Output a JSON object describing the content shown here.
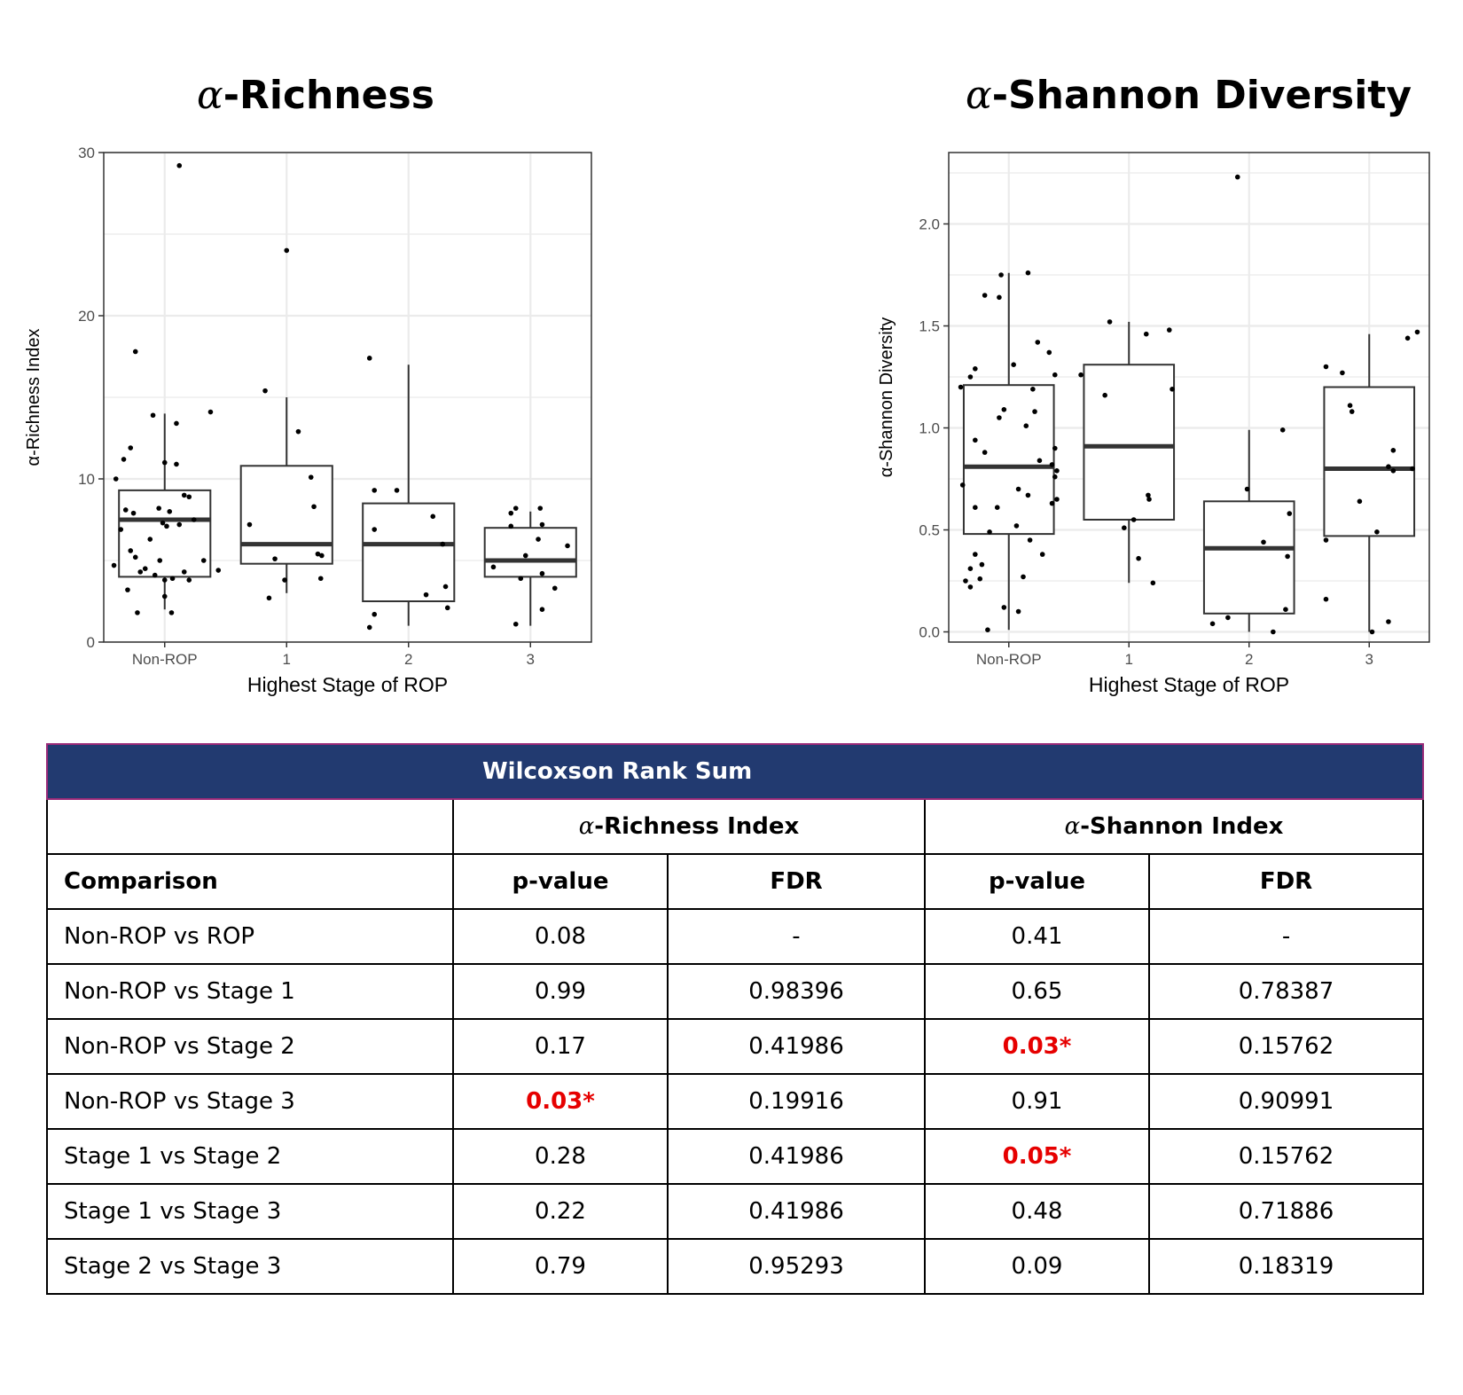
{
  "panels": [
    {
      "title_prefix": "α",
      "title_suffix": "-Richness",
      "chart_data": {
        "type": "box",
        "xlabel": "Highest Stage of ROP",
        "ylabel": "α-Richness Index",
        "categories": [
          "Non-ROP",
          "1",
          "2",
          "3"
        ],
        "ylim": [
          0,
          30
        ],
        "yticks": [
          0,
          10,
          20,
          30
        ],
        "grid": true,
        "boxes": [
          {
            "q1": 4,
            "median": 7.5,
            "q3": 9.3,
            "whisker_low": 2,
            "whisker_high": 14
          },
          {
            "q1": 4.8,
            "median": 6,
            "q3": 10.8,
            "whisker_low": 3,
            "whisker_high": 15
          },
          {
            "q1": 2.5,
            "median": 6,
            "q3": 8.5,
            "whisker_low": 1,
            "whisker_high": 17
          },
          {
            "q1": 4,
            "median": 5,
            "q3": 7,
            "whisker_low": 1,
            "whisker_high": 8
          }
        ],
        "points": [
          [
            {
              "j": 0.15,
              "y": 29.2
            },
            {
              "j": -0.3,
              "y": 17.8
            },
            {
              "j": 0.47,
              "y": 14.1
            },
            {
              "j": -0.12,
              "y": 13.9
            },
            {
              "j": 0.12,
              "y": 13.4
            },
            {
              "j": -0.35,
              "y": 11.9
            },
            {
              "j": -0.42,
              "y": 11.2
            },
            {
              "j": 0.0,
              "y": 11.0
            },
            {
              "j": 0.12,
              "y": 10.9
            },
            {
              "j": -0.5,
              "y": 10.0
            },
            {
              "j": 0.2,
              "y": 9.0
            },
            {
              "j": 0.25,
              "y": 8.9
            },
            {
              "j": -0.4,
              "y": 8.1
            },
            {
              "j": -0.06,
              "y": 8.2
            },
            {
              "j": 0.05,
              "y": 8.0
            },
            {
              "j": -0.32,
              "y": 7.9
            },
            {
              "j": 0.3,
              "y": 7.5
            },
            {
              "j": -0.02,
              "y": 7.3
            },
            {
              "j": 0.15,
              "y": 7.2
            },
            {
              "j": -0.45,
              "y": 6.9
            },
            {
              "j": 0.02,
              "y": 7.1
            },
            {
              "j": -0.15,
              "y": 6.3
            },
            {
              "j": -0.35,
              "y": 5.6
            },
            {
              "j": -0.3,
              "y": 5.2
            },
            {
              "j": 0.4,
              "y": 5.0
            },
            {
              "j": -0.05,
              "y": 5.0
            },
            {
              "j": -0.52,
              "y": 4.7
            },
            {
              "j": -0.2,
              "y": 4.5
            },
            {
              "j": -0.25,
              "y": 4.3
            },
            {
              "j": 0.2,
              "y": 4.3
            },
            {
              "j": -0.1,
              "y": 4.1
            },
            {
              "j": 0.0,
              "y": 3.8
            },
            {
              "j": 0.08,
              "y": 3.9
            },
            {
              "j": 0.25,
              "y": 3.8
            },
            {
              "j": -0.38,
              "y": 3.2
            },
            {
              "j": 0.0,
              "y": 2.8
            },
            {
              "j": -0.28,
              "y": 1.8
            },
            {
              "j": 0.07,
              "y": 1.8
            },
            {
              "j": 0.55,
              "y": 4.4
            }
          ],
          [
            {
              "j": 0.0,
              "y": 24.0
            },
            {
              "j": -0.22,
              "y": 15.4
            },
            {
              "j": 0.12,
              "y": 12.9
            },
            {
              "j": 0.25,
              "y": 10.1
            },
            {
              "j": 0.28,
              "y": 8.3
            },
            {
              "j": -0.38,
              "y": 7.2
            },
            {
              "j": -0.12,
              "y": 5.1
            },
            {
              "j": 0.32,
              "y": 5.4
            },
            {
              "j": 0.36,
              "y": 5.3
            },
            {
              "j": -0.02,
              "y": 3.8
            },
            {
              "j": 0.35,
              "y": 3.9
            },
            {
              "j": -0.18,
              "y": 2.7
            }
          ],
          [
            {
              "j": -0.4,
              "y": 17.4
            },
            {
              "j": -0.35,
              "y": 9.3
            },
            {
              "j": -0.12,
              "y": 9.3
            },
            {
              "j": 0.25,
              "y": 7.7
            },
            {
              "j": -0.35,
              "y": 6.9
            },
            {
              "j": 0.35,
              "y": 6.0
            },
            {
              "j": 0.38,
              "y": 3.4
            },
            {
              "j": 0.18,
              "y": 2.9
            },
            {
              "j": 0.4,
              "y": 2.1
            },
            {
              "j": -0.35,
              "y": 1.7
            },
            {
              "j": -0.4,
              "y": 0.9
            }
          ],
          [
            {
              "j": -0.15,
              "y": 8.2
            },
            {
              "j": 0.1,
              "y": 8.2
            },
            {
              "j": -0.2,
              "y": 7.9
            },
            {
              "j": -0.2,
              "y": 7.1
            },
            {
              "j": 0.12,
              "y": 7.2
            },
            {
              "j": 0.08,
              "y": 6.3
            },
            {
              "j": 0.38,
              "y": 5.9
            },
            {
              "j": -0.05,
              "y": 5.3
            },
            {
              "j": -0.38,
              "y": 4.6
            },
            {
              "j": 0.12,
              "y": 4.2
            },
            {
              "j": -0.1,
              "y": 3.9
            },
            {
              "j": 0.25,
              "y": 3.3
            },
            {
              "j": 0.12,
              "y": 2.0
            },
            {
              "j": -0.15,
              "y": 1.1
            }
          ]
        ]
      }
    },
    {
      "title_prefix": "α",
      "title_suffix": "-Shannon Diversity",
      "chart_data": {
        "type": "box",
        "xlabel": "Highest Stage of ROP",
        "ylabel": "α-Shannon Diversity",
        "categories": [
          "Non-ROP",
          "1",
          "2",
          "3"
        ],
        "ylim": [
          -0.05,
          2.35
        ],
        "yticks": [
          0.0,
          0.5,
          1.0,
          1.5,
          2.0
        ],
        "ytick_labels": [
          "0.0",
          "0.5",
          "1.0",
          "1.5",
          "2.0"
        ],
        "grid": true,
        "boxes": [
          {
            "q1": 0.48,
            "median": 0.81,
            "q3": 1.21,
            "whisker_low": 0.01,
            "whisker_high": 1.76
          },
          {
            "q1": 0.55,
            "median": 0.91,
            "q3": 1.31,
            "whisker_low": 0.24,
            "whisker_high": 1.52
          },
          {
            "q1": 0.09,
            "median": 0.41,
            "q3": 0.64,
            "whisker_low": 0.0,
            "whisker_high": 0.99
          },
          {
            "q1": 0.47,
            "median": 0.8,
            "q3": 1.2,
            "whisker_low": 0.0,
            "whisker_high": 1.46
          }
        ],
        "points": [
          [
            {
              "j": 0.2,
              "y": 1.76
            },
            {
              "j": -0.08,
              "y": 1.75
            },
            {
              "j": -0.25,
              "y": 1.65
            },
            {
              "j": -0.1,
              "y": 1.64
            },
            {
              "j": 0.3,
              "y": 1.42
            },
            {
              "j": 0.42,
              "y": 1.37
            },
            {
              "j": -0.35,
              "y": 1.29
            },
            {
              "j": -0.4,
              "y": 1.25
            },
            {
              "j": 0.05,
              "y": 1.31
            },
            {
              "j": -0.5,
              "y": 1.2
            },
            {
              "j": 0.25,
              "y": 1.19
            },
            {
              "j": 0.48,
              "y": 1.26
            },
            {
              "j": -0.05,
              "y": 1.09
            },
            {
              "j": 0.27,
              "y": 1.08
            },
            {
              "j": -0.1,
              "y": 1.05
            },
            {
              "j": 0.18,
              "y": 1.01
            },
            {
              "j": -0.35,
              "y": 0.94
            },
            {
              "j": 0.48,
              "y": 0.9
            },
            {
              "j": -0.25,
              "y": 0.88
            },
            {
              "j": 0.32,
              "y": 0.84
            },
            {
              "j": 0.45,
              "y": 0.82
            },
            {
              "j": 0.5,
              "y": 0.79
            },
            {
              "j": 0.48,
              "y": 0.76
            },
            {
              "j": -0.48,
              "y": 0.72
            },
            {
              "j": 0.1,
              "y": 0.7
            },
            {
              "j": 0.2,
              "y": 0.67
            },
            {
              "j": 0.5,
              "y": 0.65
            },
            {
              "j": -0.35,
              "y": 0.61
            },
            {
              "j": -0.12,
              "y": 0.61
            },
            {
              "j": 0.08,
              "y": 0.52
            },
            {
              "j": -0.2,
              "y": 0.49
            },
            {
              "j": 0.22,
              "y": 0.45
            },
            {
              "j": -0.35,
              "y": 0.38
            },
            {
              "j": 0.35,
              "y": 0.38
            },
            {
              "j": -0.4,
              "y": 0.31
            },
            {
              "j": -0.28,
              "y": 0.33
            },
            {
              "j": -0.3,
              "y": 0.26
            },
            {
              "j": -0.45,
              "y": 0.25
            },
            {
              "j": 0.15,
              "y": 0.27
            },
            {
              "j": -0.4,
              "y": 0.22
            },
            {
              "j": -0.05,
              "y": 0.12
            },
            {
              "j": 0.1,
              "y": 0.1
            },
            {
              "j": -0.22,
              "y": 0.01
            },
            {
              "j": 0.45,
              "y": 0.63
            }
          ],
          [
            {
              "j": -0.2,
              "y": 1.52
            },
            {
              "j": 0.18,
              "y": 1.46
            },
            {
              "j": 0.42,
              "y": 1.48
            },
            {
              "j": -0.5,
              "y": 1.26
            },
            {
              "j": 0.45,
              "y": 1.19
            },
            {
              "j": -0.25,
              "y": 1.16
            },
            {
              "j": 0.2,
              "y": 0.67
            },
            {
              "j": 0.21,
              "y": 0.65
            },
            {
              "j": 0.05,
              "y": 0.55
            },
            {
              "j": -0.05,
              "y": 0.51
            },
            {
              "j": 0.1,
              "y": 0.36
            },
            {
              "j": 0.25,
              "y": 0.24
            }
          ],
          [
            {
              "j": -0.12,
              "y": 2.23
            },
            {
              "j": 0.35,
              "y": 0.99
            },
            {
              "j": -0.02,
              "y": 0.7
            },
            {
              "j": 0.42,
              "y": 0.58
            },
            {
              "j": 0.15,
              "y": 0.44
            },
            {
              "j": 0.4,
              "y": 0.37
            },
            {
              "j": 0.38,
              "y": 0.11
            },
            {
              "j": -0.22,
              "y": 0.07
            },
            {
              "j": -0.38,
              "y": 0.04
            },
            {
              "j": 0.25,
              "y": 0.0
            }
          ],
          [
            {
              "j": 0.4,
              "y": 1.44
            },
            {
              "j": 0.5,
              "y": 1.47
            },
            {
              "j": -0.45,
              "y": 1.3
            },
            {
              "j": -0.28,
              "y": 1.27
            },
            {
              "j": -0.2,
              "y": 1.11
            },
            {
              "j": -0.18,
              "y": 1.08
            },
            {
              "j": 0.25,
              "y": 0.89
            },
            {
              "j": 0.2,
              "y": 0.81
            },
            {
              "j": 0.25,
              "y": 0.79
            },
            {
              "j": 0.45,
              "y": 0.8
            },
            {
              "j": -0.1,
              "y": 0.64
            },
            {
              "j": 0.08,
              "y": 0.49
            },
            {
              "j": -0.45,
              "y": 0.45
            },
            {
              "j": -0.45,
              "y": 0.16
            },
            {
              "j": 0.2,
              "y": 0.05
            },
            {
              "j": 0.03,
              "y": 0.0
            }
          ]
        ]
      }
    }
  ],
  "table": {
    "banner": "Wilcoxson Rank Sum",
    "group_richness_prefix": "α",
    "group_richness_suffix": "-Richness Index",
    "group_shannon_prefix": "α",
    "group_shannon_suffix": "-Shannon Index",
    "col_comparison": "Comparison",
    "col_pvalue": "p-value",
    "col_fdr": "FDR",
    "rows": [
      {
        "comparison": "Non-ROP vs ROP",
        "rich_p": "0.08",
        "rich_p_sig": false,
        "rich_fdr": "-",
        "shan_p": "0.41",
        "shan_p_sig": false,
        "shan_fdr": "-"
      },
      {
        "comparison": "Non-ROP vs Stage 1",
        "rich_p": "0.99",
        "rich_p_sig": false,
        "rich_fdr": "0.98396",
        "shan_p": "0.65",
        "shan_p_sig": false,
        "shan_fdr": "0.78387"
      },
      {
        "comparison": "Non-ROP vs Stage 2",
        "rich_p": "0.17",
        "rich_p_sig": false,
        "rich_fdr": "0.41986",
        "shan_p": "0.03*",
        "shan_p_sig": true,
        "shan_fdr": "0.15762"
      },
      {
        "comparison": "Non-ROP vs Stage 3",
        "rich_p": "0.03*",
        "rich_p_sig": true,
        "rich_fdr": "0.19916",
        "shan_p": "0.91",
        "shan_p_sig": false,
        "shan_fdr": "0.90991"
      },
      {
        "comparison": "Stage 1 vs Stage 2",
        "rich_p": "0.28",
        "rich_p_sig": false,
        "rich_fdr": "0.41986",
        "shan_p": "0.05*",
        "shan_p_sig": true,
        "shan_fdr": "0.15762"
      },
      {
        "comparison": "Stage 1 vs Stage 3",
        "rich_p": "0.22",
        "rich_p_sig": false,
        "rich_fdr": "0.41986",
        "shan_p": "0.48",
        "shan_p_sig": false,
        "shan_fdr": "0.71886"
      },
      {
        "comparison": "Stage 2 vs Stage 3",
        "rich_p": "0.79",
        "rich_p_sig": false,
        "rich_fdr": "0.95293",
        "shan_p": "0.09",
        "shan_p_sig": false,
        "shan_fdr": "0.18319"
      }
    ]
  },
  "colors": {
    "significant": "#e60000",
    "banner_bg": "#223a70",
    "grid": "#ebebeb",
    "box_stroke": "#333333",
    "point": "#000000"
  }
}
